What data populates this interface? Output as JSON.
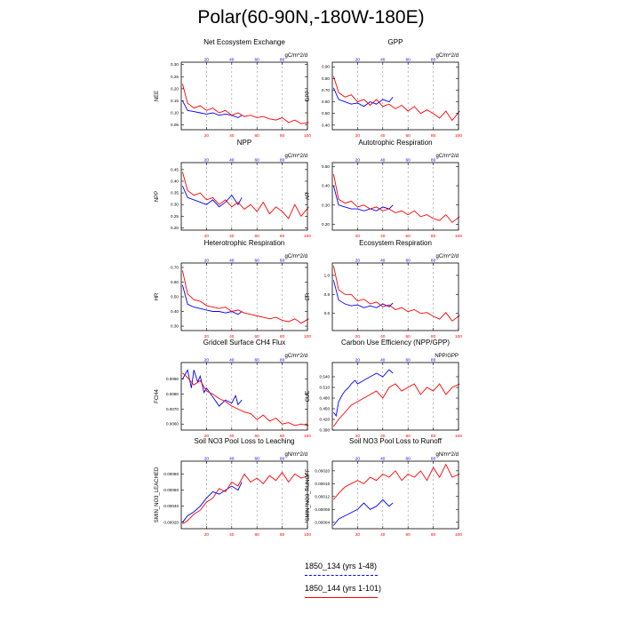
{
  "page_title": "Polar(60-90N,-180W-180E)",
  "colors": {
    "run_a": "#0000ff",
    "run_b": "#ff0000",
    "axis": "#000000",
    "grid": "#8c8c8c"
  },
  "legend": [
    {
      "label": "1850_134 (yrs 1-48)",
      "color": "#0000ff",
      "style": "dashed"
    },
    {
      "label": "1850_144 (yrs 1-101)",
      "color": "#ff0000",
      "style": "solid"
    }
  ],
  "chart_data": [
    {
      "type": "line",
      "title": "Net Ecosystem Exchange",
      "ylabel": "NEE",
      "units": "gC/m^2/d",
      "ylim": [
        0.03,
        0.31
      ],
      "yticks": [
        "0.05",
        "0.10",
        "0.15",
        "0.20",
        "0.25",
        "0.30"
      ],
      "xlim": [
        0,
        100
      ],
      "xticks": [
        20,
        40,
        60,
        80,
        100
      ],
      "top_xticks": [
        20,
        40,
        60,
        80
      ],
      "series": [
        {
          "name": "1850_134 (yrs 1-48)",
          "x": [
            1,
            5,
            10,
            15,
            20,
            25,
            30,
            35,
            40,
            45,
            48
          ],
          "y": [
            0.15,
            0.11,
            0.105,
            0.1,
            0.095,
            0.1,
            0.09,
            0.095,
            0.09,
            0.08,
            0.09
          ]
        },
        {
          "name": "1850_144 (yrs 1-101)",
          "x": [
            1,
            5,
            10,
            15,
            20,
            25,
            30,
            35,
            40,
            45,
            50,
            55,
            60,
            65,
            70,
            75,
            80,
            85,
            90,
            95,
            101
          ],
          "y": [
            0.22,
            0.14,
            0.12,
            0.13,
            0.11,
            0.12,
            0.1,
            0.11,
            0.09,
            0.1,
            0.085,
            0.09,
            0.08,
            0.085,
            0.075,
            0.07,
            0.08,
            0.06,
            0.07,
            0.055,
            0.06
          ]
        }
      ]
    },
    {
      "type": "line",
      "title": "GPP",
      "ylabel": "GPP",
      "units": "gC/m^2/d",
      "ylim": [
        0.36,
        0.94
      ],
      "yticks": [
        "0.40",
        "0.50",
        "0.60",
        "0.70",
        "0.80",
        "0.90"
      ],
      "xlim": [
        0,
        100
      ],
      "xticks": [
        20,
        40,
        60,
        80,
        100
      ],
      "top_xticks": [
        20,
        40,
        60,
        80
      ],
      "series": [
        {
          "name": "1850_134 (yrs 1-48)",
          "x": [
            1,
            5,
            10,
            15,
            20,
            25,
            30,
            35,
            40,
            45,
            48
          ],
          "y": [
            0.72,
            0.62,
            0.6,
            0.58,
            0.59,
            0.56,
            0.6,
            0.58,
            0.62,
            0.6,
            0.64
          ]
        },
        {
          "name": "1850_144 (yrs 1-101)",
          "x": [
            1,
            5,
            10,
            15,
            20,
            25,
            30,
            35,
            40,
            45,
            50,
            55,
            60,
            65,
            70,
            75,
            80,
            85,
            90,
            95,
            101
          ],
          "y": [
            0.82,
            0.68,
            0.64,
            0.66,
            0.6,
            0.62,
            0.57,
            0.62,
            0.56,
            0.58,
            0.54,
            0.57,
            0.52,
            0.56,
            0.5,
            0.53,
            0.5,
            0.46,
            0.52,
            0.44,
            0.52
          ]
        }
      ]
    },
    {
      "type": "line",
      "title": "NPP",
      "ylabel": "NPP",
      "units": "gC/m^2/d",
      "ylim": [
        0.19,
        0.48
      ],
      "yticks": [
        "0.20",
        "0.25",
        "0.30",
        "0.35",
        "0.40",
        "0.45"
      ],
      "xlim": [
        0,
        100
      ],
      "xticks": [
        20,
        40,
        60,
        80,
        100
      ],
      "top_xticks": [
        20,
        40,
        60,
        80
      ],
      "series": [
        {
          "name": "1850_134 (yrs 1-48)",
          "x": [
            1,
            5,
            10,
            15,
            20,
            25,
            30,
            35,
            40,
            45,
            48
          ],
          "y": [
            0.38,
            0.33,
            0.32,
            0.31,
            0.3,
            0.32,
            0.29,
            0.31,
            0.34,
            0.3,
            0.33
          ]
        },
        {
          "name": "1850_144 (yrs 1-101)",
          "x": [
            1,
            5,
            10,
            15,
            20,
            25,
            30,
            35,
            40,
            45,
            50,
            55,
            60,
            65,
            70,
            75,
            80,
            85,
            90,
            95,
            101
          ],
          "y": [
            0.44,
            0.36,
            0.34,
            0.35,
            0.32,
            0.33,
            0.3,
            0.32,
            0.29,
            0.31,
            0.28,
            0.3,
            0.27,
            0.31,
            0.26,
            0.29,
            0.27,
            0.24,
            0.3,
            0.25,
            0.29
          ]
        }
      ]
    },
    {
      "type": "line",
      "title": "Autotrophic Respiration",
      "ylabel": "AR",
      "units": "gC/m^2/d",
      "ylim": [
        0.17,
        0.52
      ],
      "yticks": [
        "0.20",
        "0.30",
        "0.40",
        "0.50"
      ],
      "xlim": [
        0,
        100
      ],
      "xticks": [
        20,
        40,
        60,
        80,
        100
      ],
      "top_xticks": [
        20,
        40,
        60,
        80
      ],
      "series": [
        {
          "name": "1850_134 (yrs 1-48)",
          "x": [
            1,
            5,
            10,
            15,
            20,
            25,
            30,
            35,
            40,
            45,
            48
          ],
          "y": [
            0.4,
            0.3,
            0.29,
            0.28,
            0.28,
            0.27,
            0.28,
            0.27,
            0.29,
            0.28,
            0.3
          ]
        },
        {
          "name": "1850_144 (yrs 1-101)",
          "x": [
            1,
            5,
            10,
            15,
            20,
            25,
            30,
            35,
            40,
            45,
            50,
            55,
            60,
            65,
            70,
            75,
            80,
            85,
            90,
            95,
            101
          ],
          "y": [
            0.46,
            0.33,
            0.31,
            0.32,
            0.29,
            0.3,
            0.28,
            0.29,
            0.27,
            0.28,
            0.26,
            0.27,
            0.25,
            0.27,
            0.24,
            0.25,
            0.23,
            0.22,
            0.25,
            0.21,
            0.24
          ]
        }
      ]
    },
    {
      "type": "line",
      "title": "Heterotrophic Respiration",
      "ylabel": "HR",
      "units": "gC/m^2/d",
      "ylim": [
        0.27,
        0.73
      ],
      "yticks": [
        "0.30",
        "0.40",
        "0.50",
        "0.60",
        "0.70"
      ],
      "xlim": [
        0,
        100
      ],
      "xticks": [
        20,
        40,
        60,
        80,
        100
      ],
      "top_xticks": [
        20,
        40,
        60,
        80
      ],
      "series": [
        {
          "name": "1850_134 (yrs 1-48)",
          "x": [
            1,
            5,
            10,
            15,
            20,
            25,
            30,
            35,
            40,
            45,
            48
          ],
          "y": [
            0.58,
            0.45,
            0.43,
            0.42,
            0.41,
            0.4,
            0.4,
            0.39,
            0.4,
            0.38,
            0.4
          ]
        },
        {
          "name": "1850_144 (yrs 1-101)",
          "x": [
            1,
            5,
            10,
            15,
            20,
            25,
            30,
            35,
            40,
            45,
            50,
            55,
            60,
            65,
            70,
            75,
            80,
            85,
            90,
            95,
            101
          ],
          "y": [
            0.68,
            0.52,
            0.48,
            0.47,
            0.44,
            0.43,
            0.42,
            0.43,
            0.4,
            0.41,
            0.39,
            0.38,
            0.37,
            0.36,
            0.35,
            0.36,
            0.34,
            0.33,
            0.35,
            0.32,
            0.35
          ]
        }
      ]
    },
    {
      "type": "line",
      "title": "Ecosystem Respiration",
      "ylabel": "ER",
      "units": "gC/m^2/d",
      "ylim": [
        0.42,
        1.13
      ],
      "yticks": [
        "0.6",
        "0.8",
        "1.0"
      ],
      "xlim": [
        0,
        100
      ],
      "xticks": [
        20,
        40,
        60,
        80,
        100
      ],
      "top_xticks": [
        20,
        40,
        60,
        80
      ],
      "series": [
        {
          "name": "1850_134 (yrs 1-48)",
          "x": [
            1,
            5,
            10,
            15,
            20,
            25,
            30,
            35,
            40,
            45,
            48
          ],
          "y": [
            0.95,
            0.74,
            0.7,
            0.68,
            0.69,
            0.66,
            0.68,
            0.66,
            0.7,
            0.67,
            0.71
          ]
        },
        {
          "name": "1850_144 (yrs 1-101)",
          "x": [
            1,
            5,
            10,
            15,
            20,
            25,
            30,
            35,
            40,
            45,
            50,
            55,
            60,
            65,
            70,
            75,
            80,
            85,
            90,
            95,
            101
          ],
          "y": [
            1.1,
            0.85,
            0.8,
            0.8,
            0.73,
            0.75,
            0.7,
            0.72,
            0.67,
            0.69,
            0.64,
            0.66,
            0.62,
            0.64,
            0.6,
            0.61,
            0.57,
            0.54,
            0.61,
            0.52,
            0.58
          ]
        }
      ]
    },
    {
      "type": "line",
      "title": "Gridcell Surface CH4 Flux",
      "ylabel": "FCH4",
      "units": "gC/m^2/d",
      "ylim": [
        0.0056,
        0.0101
      ],
      "yticks": [
        "0.0060",
        "0.0070",
        "0.0080",
        "0.0090"
      ],
      "xlim": [
        0,
        100
      ],
      "xticks": [
        20,
        40,
        60,
        80,
        100
      ],
      "top_xticks": [
        20,
        40,
        60,
        80
      ],
      "series": [
        {
          "name": "1850_134 (yrs 1-48)",
          "x": [
            1,
            5,
            8,
            10,
            13,
            15,
            18,
            20,
            25,
            30,
            35,
            40,
            43,
            45,
            48
          ],
          "y": [
            0.009,
            0.0096,
            0.0084,
            0.0096,
            0.0088,
            0.0092,
            0.0081,
            0.0084,
            0.0078,
            0.0072,
            0.0076,
            0.0074,
            0.0079,
            0.0073,
            0.0076
          ]
        },
        {
          "name": "1850_144 (yrs 1-101)",
          "x": [
            1,
            5,
            10,
            15,
            20,
            25,
            30,
            35,
            40,
            45,
            50,
            55,
            60,
            65,
            70,
            75,
            80,
            85,
            90,
            95,
            101
          ],
          "y": [
            0.0094,
            0.0091,
            0.0086,
            0.0089,
            0.0082,
            0.008,
            0.0077,
            0.0075,
            0.0072,
            0.007,
            0.0068,
            0.0067,
            0.0063,
            0.0066,
            0.0062,
            0.0064,
            0.006,
            0.0061,
            0.0059,
            0.006,
            0.0059
          ]
        }
      ]
    },
    {
      "type": "line",
      "title": "Carbon Use Efficiency (NPP/GPP)",
      "ylabel": "CUE",
      "units": "NPP/GPP",
      "ylim": [
        0.39,
        0.58
      ],
      "yticks": [
        "0.390",
        "0.420",
        "0.450",
        "0.480",
        "0.510",
        "0.540"
      ],
      "xlim": [
        0,
        100
      ],
      "xticks": [
        20,
        40,
        60,
        80,
        100
      ],
      "top_xticks": [
        20,
        40,
        60,
        80
      ],
      "series": [
        {
          "name": "1850_134 (yrs 1-48)",
          "x": [
            1,
            3,
            5,
            8,
            10,
            13,
            15,
            18,
            20,
            25,
            30,
            35,
            40,
            45,
            48
          ],
          "y": [
            0.44,
            0.43,
            0.47,
            0.49,
            0.5,
            0.51,
            0.52,
            0.53,
            0.52,
            0.53,
            0.54,
            0.55,
            0.54,
            0.56,
            0.55
          ]
        },
        {
          "name": "1850_144 (yrs 1-101)",
          "x": [
            1,
            5,
            10,
            15,
            20,
            25,
            30,
            35,
            40,
            45,
            50,
            55,
            60,
            65,
            70,
            75,
            80,
            85,
            90,
            95,
            101
          ],
          "y": [
            0.4,
            0.42,
            0.44,
            0.46,
            0.47,
            0.48,
            0.49,
            0.5,
            0.48,
            0.51,
            0.52,
            0.5,
            0.51,
            0.52,
            0.49,
            0.51,
            0.5,
            0.52,
            0.49,
            0.51,
            0.52
          ]
        }
      ]
    },
    {
      "type": "line",
      "title": "Soil NO3 Pool Loss to Leaching",
      "ylabel": "SMIN_NO3_LEACHED",
      "units": "gN/m^2/d",
      "ylim": [
        0.00012,
        0.00096
      ],
      "yticks": [
        "0.00020",
        "0.00040",
        "0.00060",
        "0.00080"
      ],
      "xlim": [
        0,
        100
      ],
      "xticks": [
        20,
        40,
        60,
        80,
        100
      ],
      "top_xticks": [
        20,
        40,
        60,
        80
      ],
      "series": [
        {
          "name": "1850_134 (yrs 1-48)",
          "x": [
            1,
            5,
            10,
            15,
            20,
            25,
            30,
            35,
            40,
            45,
            48
          ],
          "y": [
            0.0002,
            0.00028,
            0.00033,
            0.0004,
            0.0005,
            0.00058,
            0.00055,
            0.0006,
            0.00065,
            0.0006,
            0.0007
          ]
        },
        {
          "name": "1850_144 (yrs 1-101)",
          "x": [
            1,
            5,
            10,
            15,
            20,
            25,
            30,
            35,
            40,
            45,
            50,
            55,
            60,
            65,
            70,
            75,
            80,
            85,
            90,
            95,
            101
          ],
          "y": [
            0.00018,
            0.00022,
            0.0003,
            0.00035,
            0.00045,
            0.0005,
            0.00062,
            0.00058,
            0.0007,
            0.00065,
            0.0008,
            0.0007,
            0.00075,
            0.00068,
            0.00078,
            0.00072,
            0.00082,
            0.0007,
            0.0008,
            0.00075,
            0.00078
          ]
        }
      ]
    },
    {
      "type": "line",
      "title": "Soil NO3 Pool Loss to Runoff",
      "ylabel": "SMIN_NO3_RUNOFF",
      "units": "gN/m^2/d",
      "ylim": [
        2e-05,
        0.00023
      ],
      "yticks": [
        "0.00004",
        "0.00008",
        "0.00012",
        "0.00016",
        "0.00020"
      ],
      "xlim": [
        0,
        100
      ],
      "xticks": [
        20,
        40,
        60,
        80,
        100
      ],
      "top_xticks": [
        20,
        40,
        60,
        80
      ],
      "series": [
        {
          "name": "1850_134 (yrs 1-48)",
          "x": [
            1,
            5,
            10,
            15,
            20,
            25,
            30,
            35,
            40,
            45,
            48
          ],
          "y": [
            3e-05,
            5e-05,
            6e-05,
            7e-05,
            8e-05,
            0.0001,
            8e-05,
            9e-05,
            0.00011,
            9e-05,
            0.0001
          ]
        },
        {
          "name": "1850_144 (yrs 1-101)",
          "x": [
            1,
            5,
            10,
            15,
            20,
            25,
            30,
            35,
            40,
            45,
            50,
            55,
            60,
            65,
            70,
            75,
            80,
            85,
            90,
            95,
            101
          ],
          "y": [
            0.00011,
            0.00013,
            0.00015,
            0.00016,
            0.00017,
            0.00016,
            0.00018,
            0.00017,
            0.00019,
            0.00018,
            0.0002,
            0.00017,
            0.00019,
            0.00018,
            0.0002,
            0.00017,
            0.00021,
            0.00018,
            0.00022,
            0.00018,
            0.00019
          ]
        }
      ]
    }
  ]
}
